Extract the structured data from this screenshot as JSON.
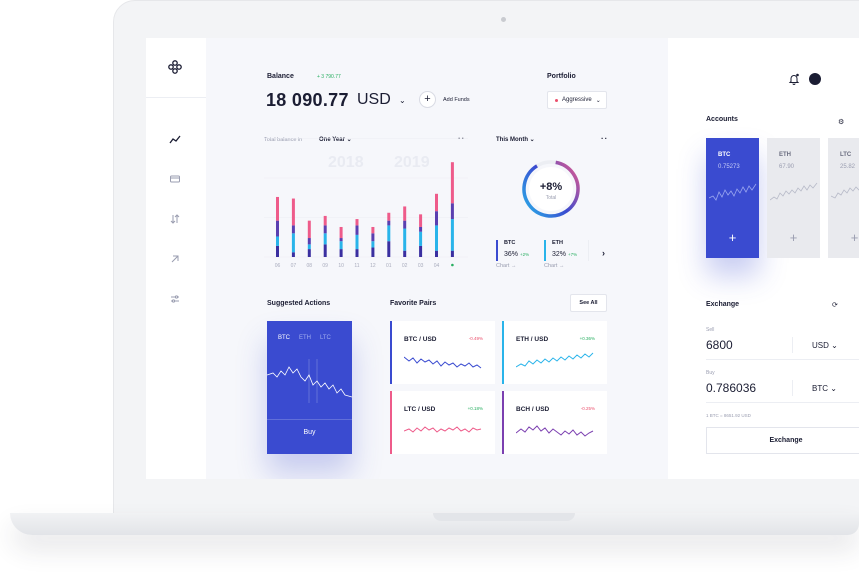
{
  "balance": {
    "title": "Balance",
    "delta": "+ 3 790.77",
    "amount": "18 090.77",
    "currency": "USD",
    "add_funds_label": "Add Funds"
  },
  "portfolio": {
    "title": "Portfolio",
    "selected": "Aggressive"
  },
  "total_balance": {
    "label": "Total balance in",
    "range": "One Year",
    "year_left": "2018",
    "year_right": "2019"
  },
  "chart_data": {
    "type": "bar",
    "categories": [
      "06",
      "07",
      "08",
      "09",
      "10",
      "11",
      "12",
      "01",
      "02",
      "03",
      "04",
      ""
    ],
    "series": [
      {
        "values": [
          7,
          3,
          5,
          8,
          5,
          5,
          6,
          10,
          4,
          7,
          4,
          4
        ]
      },
      {
        "values": [
          6,
          12,
          3,
          7,
          5,
          9,
          4,
          10,
          14,
          9,
          16,
          20
        ]
      },
      {
        "values": [
          10,
          5,
          4,
          5,
          2,
          6,
          5,
          3,
          5,
          3,
          9,
          10
        ]
      },
      {
        "values": [
          15,
          17,
          11,
          6,
          7,
          4,
          4,
          5,
          9,
          8,
          11,
          26
        ]
      }
    ],
    "colors": [
      "#3a2fa0",
      "#29b4ea",
      "#5a3fb0",
      "#ee5b8a"
    ]
  },
  "month": {
    "label": "This Month",
    "donut_value": "+8%",
    "donut_sub": "Total",
    "coins": [
      {
        "name": "BTC",
        "pct": "36%",
        "delta": "+2%",
        "chart": "Chart →",
        "color": "#3a4bd0"
      },
      {
        "name": "ETH",
        "pct": "32%",
        "delta": "+7%",
        "chart": "Chart →",
        "color": "#29b4ea"
      }
    ]
  },
  "suggested": {
    "title": "Suggested Actions",
    "tabs": [
      "BTC",
      "ETH",
      "LTC"
    ],
    "buy_label": "Buy"
  },
  "favorites": {
    "title": "Favorite Pairs",
    "see_all": "See All",
    "pairs": [
      {
        "name": "BTC / USD",
        "change": "-0.49%",
        "dir": "down",
        "color": "#3a4bd0"
      },
      {
        "name": "ETH / USD",
        "change": "+0.36%",
        "dir": "up",
        "color": "#29b4ea"
      },
      {
        "name": "LTC / USD",
        "change": "+0.18%",
        "dir": "up",
        "color": "#ee5b8a"
      },
      {
        "name": "BCH / USD",
        "change": "-0.25%",
        "dir": "down",
        "color": "#7b3fb0"
      }
    ]
  },
  "accounts": {
    "title": "Accounts",
    "items": [
      {
        "name": "BTC",
        "value": "0.75273"
      },
      {
        "name": "ETH",
        "value": "67.90"
      },
      {
        "name": "LTC",
        "value": "25.82"
      }
    ]
  },
  "exchange": {
    "title": "Exchange",
    "sell_label": "Sell",
    "sell_value": "6800",
    "sell_currency": "USD",
    "buy_label": "Buy",
    "buy_value": "0.786036",
    "buy_currency": "BTC",
    "rate": "1 BTC = 8651.92 USD",
    "button": "Exchange"
  },
  "icons": [
    "logo-icon",
    "activity-icon",
    "card-icon",
    "transfer-icon",
    "send-icon",
    "sliders-icon",
    "bell-icon",
    "gear-icon",
    "refresh-icon",
    "chevron-down-icon",
    "plus-icon",
    "chevron-right-icon"
  ]
}
